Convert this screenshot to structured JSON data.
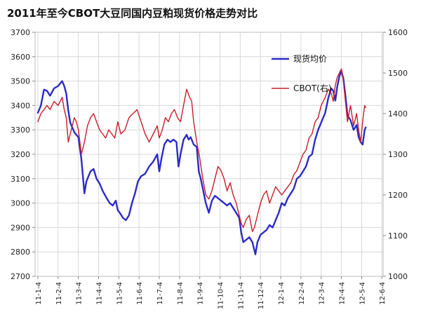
{
  "chart_data": {
    "type": "line",
    "title": "2011年至今CBOT大豆同国内豆粕现货价格走势对比",
    "x_ticks": [
      "11-1-4",
      "11-2-4",
      "11-3-4",
      "11-4-4",
      "11-5-4",
      "11-6-4",
      "11-7-4",
      "11-8-4",
      "11-9-4",
      "11-10-4",
      "11-11-4",
      "11-12-4",
      "12-1-4",
      "12-2-4",
      "12-3-4",
      "12-4-4",
      "12-5-4",
      "12-6-4"
    ],
    "y_left": {
      "min": 2700,
      "max": 3700,
      "ticks": [
        2700,
        2800,
        2900,
        3000,
        3100,
        3200,
        3300,
        3400,
        3500,
        3600,
        3700
      ]
    },
    "y_right": {
      "min": 1000,
      "max": 1600,
      "ticks": [
        1000,
        1100,
        1200,
        1300,
        1400,
        1500,
        1600
      ]
    },
    "grid": true,
    "legend_position": "top-right",
    "colors": {
      "spot": "#2b2bc8",
      "cbot": "#c81e2a",
      "grid": "#d8d8d8",
      "axis": "#888888"
    },
    "series": [
      {
        "name": "现货均价",
        "axis": "left",
        "values": [
          [
            0.0,
            3370
          ],
          [
            0.15,
            3400
          ],
          [
            0.3,
            3465
          ],
          [
            0.45,
            3460
          ],
          [
            0.6,
            3440
          ],
          [
            0.8,
            3470
          ],
          [
            1.0,
            3480
          ],
          [
            1.2,
            3500
          ],
          [
            1.3,
            3480
          ],
          [
            1.4,
            3450
          ],
          [
            1.5,
            3380
          ],
          [
            1.6,
            3330
          ],
          [
            1.7,
            3310
          ],
          [
            1.8,
            3290
          ],
          [
            1.9,
            3280
          ],
          [
            2.0,
            3270
          ],
          [
            2.15,
            3180
          ],
          [
            2.3,
            3040
          ],
          [
            2.4,
            3090
          ],
          [
            2.5,
            3110
          ],
          [
            2.6,
            3130
          ],
          [
            2.75,
            3140
          ],
          [
            2.9,
            3100
          ],
          [
            3.05,
            3080
          ],
          [
            3.2,
            3050
          ],
          [
            3.4,
            3020
          ],
          [
            3.55,
            3000
          ],
          [
            3.7,
            2990
          ],
          [
            3.85,
            3010
          ],
          [
            3.95,
            2970
          ],
          [
            4.05,
            2960
          ],
          [
            4.2,
            2940
          ],
          [
            4.35,
            2930
          ],
          [
            4.5,
            2950
          ],
          [
            4.65,
            3000
          ],
          [
            4.8,
            3040
          ],
          [
            4.95,
            3090
          ],
          [
            5.1,
            3110
          ],
          [
            5.3,
            3120
          ],
          [
            5.5,
            3150
          ],
          [
            5.7,
            3170
          ],
          [
            5.9,
            3200
          ],
          [
            6.0,
            3130
          ],
          [
            6.1,
            3180
          ],
          [
            6.25,
            3240
          ],
          [
            6.4,
            3260
          ],
          [
            6.55,
            3250
          ],
          [
            6.7,
            3260
          ],
          [
            6.85,
            3250
          ],
          [
            6.95,
            3150
          ],
          [
            7.05,
            3200
          ],
          [
            7.2,
            3260
          ],
          [
            7.35,
            3280
          ],
          [
            7.45,
            3260
          ],
          [
            7.55,
            3270
          ],
          [
            7.7,
            3240
          ],
          [
            7.85,
            3230
          ],
          [
            7.95,
            3130
          ],
          [
            8.05,
            3100
          ],
          [
            8.15,
            3060
          ],
          [
            8.3,
            3000
          ],
          [
            8.45,
            2960
          ],
          [
            8.6,
            3010
          ],
          [
            8.75,
            3030
          ],
          [
            8.9,
            3020
          ],
          [
            9.05,
            3010
          ],
          [
            9.2,
            3000
          ],
          [
            9.35,
            2990
          ],
          [
            9.5,
            3000
          ],
          [
            9.65,
            2980
          ],
          [
            9.8,
            2960
          ],
          [
            9.95,
            2940
          ],
          [
            10.05,
            2880
          ],
          [
            10.15,
            2840
          ],
          [
            10.3,
            2850
          ],
          [
            10.45,
            2860
          ],
          [
            10.6,
            2840
          ],
          [
            10.75,
            2790
          ],
          [
            10.85,
            2840
          ],
          [
            11.0,
            2870
          ],
          [
            11.15,
            2880
          ],
          [
            11.3,
            2890
          ],
          [
            11.45,
            2910
          ],
          [
            11.6,
            2900
          ],
          [
            11.75,
            2930
          ],
          [
            11.9,
            2960
          ],
          [
            12.05,
            3000
          ],
          [
            12.2,
            2990
          ],
          [
            12.35,
            3020
          ],
          [
            12.5,
            3040
          ],
          [
            12.65,
            3060
          ],
          [
            12.8,
            3100
          ],
          [
            12.95,
            3110
          ],
          [
            13.1,
            3130
          ],
          [
            13.25,
            3150
          ],
          [
            13.4,
            3190
          ],
          [
            13.55,
            3200
          ],
          [
            13.7,
            3260
          ],
          [
            13.85,
            3300
          ],
          [
            14.0,
            3330
          ],
          [
            14.2,
            3370
          ],
          [
            14.35,
            3430
          ],
          [
            14.5,
            3470
          ],
          [
            14.6,
            3460
          ],
          [
            14.7,
            3420
          ],
          [
            14.8,
            3480
          ],
          [
            14.9,
            3520
          ],
          [
            15.0,
            3540
          ],
          [
            15.1,
            3510
          ],
          [
            15.2,
            3440
          ],
          [
            15.3,
            3360
          ],
          [
            15.45,
            3340
          ],
          [
            15.6,
            3300
          ],
          [
            15.75,
            3320
          ],
          [
            15.85,
            3270
          ],
          [
            15.95,
            3250
          ],
          [
            16.05,
            3240
          ],
          [
            16.15,
            3300
          ],
          [
            16.2,
            3310
          ]
        ]
      },
      {
        "name": "CBOT(右)",
        "axis": "right",
        "values": [
          [
            0.0,
            1380
          ],
          [
            0.15,
            1400
          ],
          [
            0.3,
            1410
          ],
          [
            0.45,
            1420
          ],
          [
            0.6,
            1410
          ],
          [
            0.8,
            1430
          ],
          [
            1.0,
            1420
          ],
          [
            1.2,
            1440
          ],
          [
            1.3,
            1410
          ],
          [
            1.4,
            1390
          ],
          [
            1.5,
            1330
          ],
          [
            1.6,
            1350
          ],
          [
            1.7,
            1370
          ],
          [
            1.8,
            1390
          ],
          [
            1.9,
            1380
          ],
          [
            2.0,
            1360
          ],
          [
            2.15,
            1300
          ],
          [
            2.3,
            1330
          ],
          [
            2.45,
            1370
          ],
          [
            2.6,
            1390
          ],
          [
            2.75,
            1400
          ],
          [
            2.9,
            1380
          ],
          [
            3.05,
            1360
          ],
          [
            3.2,
            1350
          ],
          [
            3.35,
            1340
          ],
          [
            3.5,
            1360
          ],
          [
            3.65,
            1350
          ],
          [
            3.8,
            1340
          ],
          [
            3.95,
            1380
          ],
          [
            4.1,
            1350
          ],
          [
            4.3,
            1360
          ],
          [
            4.5,
            1390
          ],
          [
            4.7,
            1400
          ],
          [
            4.9,
            1410
          ],
          [
            5.1,
            1380
          ],
          [
            5.3,
            1350
          ],
          [
            5.5,
            1330
          ],
          [
            5.7,
            1350
          ],
          [
            5.9,
            1370
          ],
          [
            6.0,
            1340
          ],
          [
            6.15,
            1360
          ],
          [
            6.3,
            1390
          ],
          [
            6.45,
            1380
          ],
          [
            6.6,
            1400
          ],
          [
            6.75,
            1410
          ],
          [
            6.9,
            1390
          ],
          [
            7.05,
            1380
          ],
          [
            7.2,
            1420
          ],
          [
            7.35,
            1460
          ],
          [
            7.5,
            1440
          ],
          [
            7.6,
            1430
          ],
          [
            7.7,
            1380
          ],
          [
            7.85,
            1330
          ],
          [
            8.0,
            1290
          ],
          [
            8.15,
            1240
          ],
          [
            8.3,
            1200
          ],
          [
            8.45,
            1190
          ],
          [
            8.6,
            1210
          ],
          [
            8.75,
            1240
          ],
          [
            8.9,
            1270
          ],
          [
            9.05,
            1260
          ],
          [
            9.2,
            1240
          ],
          [
            9.35,
            1210
          ],
          [
            9.5,
            1230
          ],
          [
            9.65,
            1200
          ],
          [
            9.8,
            1180
          ],
          [
            9.95,
            1150
          ],
          [
            10.05,
            1130
          ],
          [
            10.15,
            1120
          ],
          [
            10.3,
            1140
          ],
          [
            10.45,
            1150
          ],
          [
            10.6,
            1110
          ],
          [
            10.7,
            1120
          ],
          [
            10.85,
            1150
          ],
          [
            11.0,
            1180
          ],
          [
            11.15,
            1200
          ],
          [
            11.3,
            1210
          ],
          [
            11.45,
            1180
          ],
          [
            11.6,
            1200
          ],
          [
            11.75,
            1220
          ],
          [
            11.9,
            1210
          ],
          [
            12.05,
            1200
          ],
          [
            12.2,
            1210
          ],
          [
            12.35,
            1220
          ],
          [
            12.5,
            1230
          ],
          [
            12.65,
            1250
          ],
          [
            12.8,
            1260
          ],
          [
            12.95,
            1280
          ],
          [
            13.1,
            1300
          ],
          [
            13.25,
            1310
          ],
          [
            13.4,
            1340
          ],
          [
            13.55,
            1350
          ],
          [
            13.7,
            1380
          ],
          [
            13.85,
            1390
          ],
          [
            14.0,
            1420
          ],
          [
            14.2,
            1440
          ],
          [
            14.35,
            1460
          ],
          [
            14.5,
            1450
          ],
          [
            14.6,
            1430
          ],
          [
            14.7,
            1470
          ],
          [
            14.8,
            1490
          ],
          [
            14.9,
            1500
          ],
          [
            15.0,
            1510
          ],
          [
            15.1,
            1480
          ],
          [
            15.2,
            1430
          ],
          [
            15.3,
            1380
          ],
          [
            15.45,
            1420
          ],
          [
            15.6,
            1370
          ],
          [
            15.75,
            1400
          ],
          [
            15.85,
            1360
          ],
          [
            15.95,
            1330
          ],
          [
            16.05,
            1380
          ],
          [
            16.15,
            1420
          ],
          [
            16.2,
            1415
          ]
        ]
      }
    ]
  }
}
